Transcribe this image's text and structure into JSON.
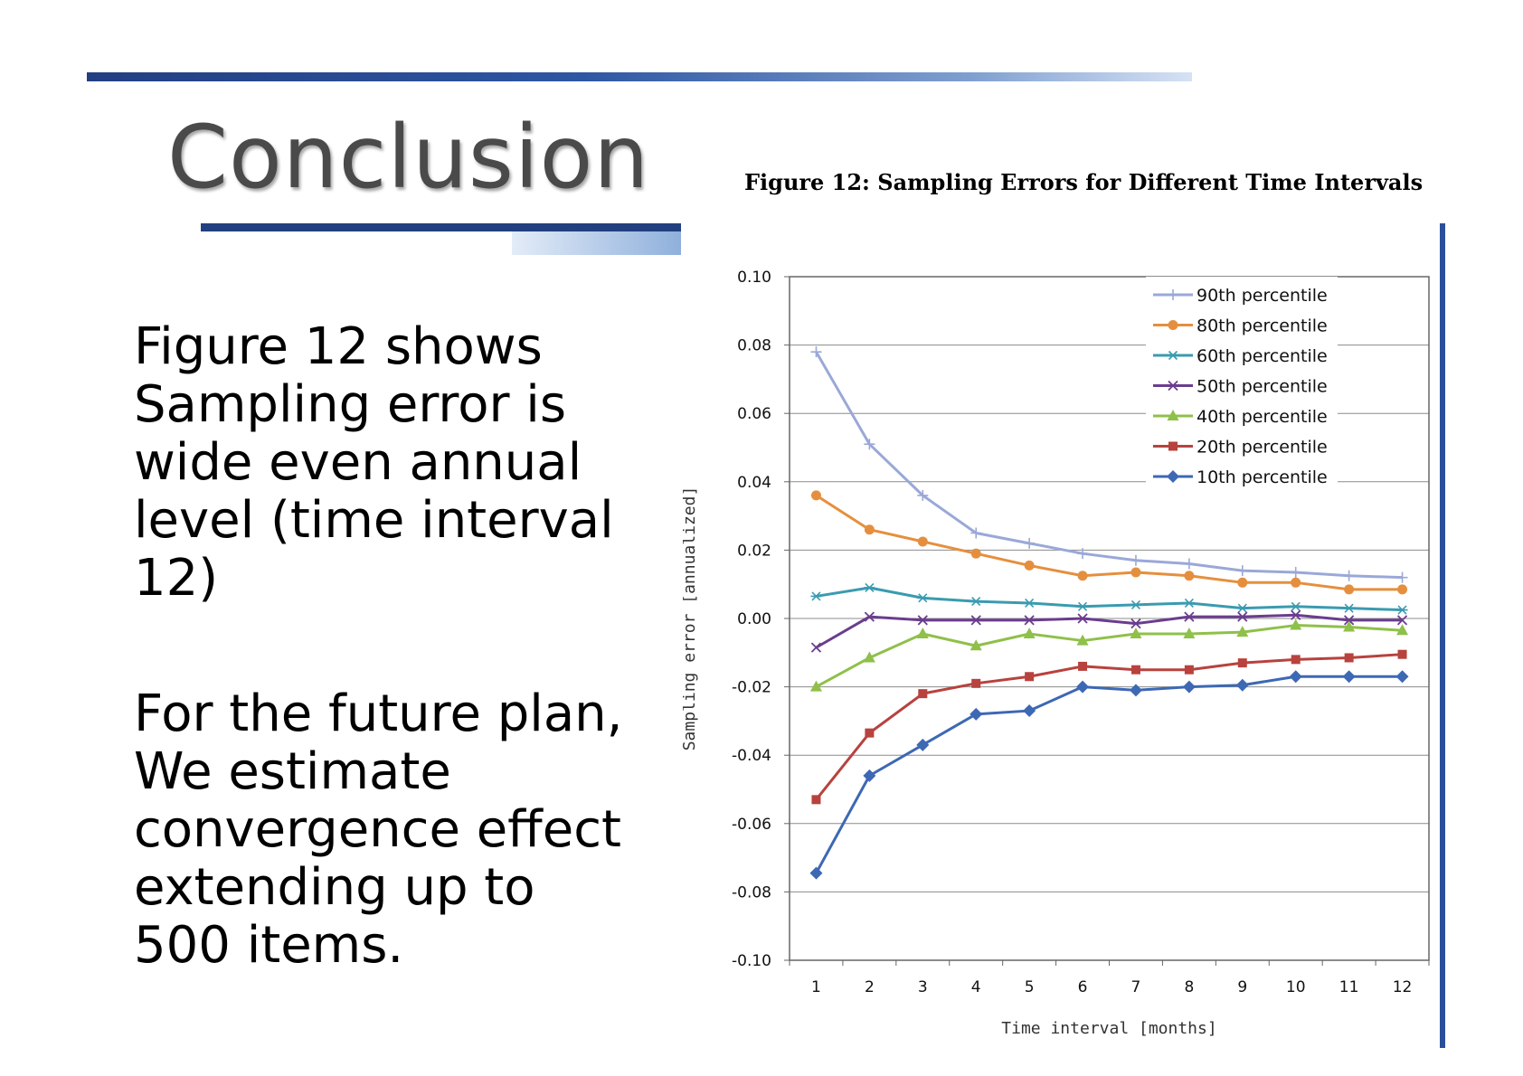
{
  "slide": {
    "title": "Conclusion",
    "paragraph1": [
      "Figure 12 shows",
      "Sampling error is",
      "wide even annual",
      "level (time interval",
      "12)"
    ],
    "paragraph2": [
      "For the future plan,",
      "We estimate",
      "convergence effect",
      "extending up to",
      "500 items."
    ]
  },
  "chart_data": {
    "type": "line",
    "title": "Figure 12: Sampling Errors for Different Time Intervals",
    "xlabel": "Time interval [months]",
    "ylabel": "Sampling error [annualized]",
    "x": [
      1,
      2,
      3,
      4,
      5,
      6,
      7,
      8,
      9,
      10,
      11,
      12
    ],
    "xticks": [
      "1",
      "2",
      "3",
      "4",
      "5",
      "6",
      "7",
      "8",
      "9",
      "10",
      "11",
      "12"
    ],
    "ylim": [
      -0.1,
      0.1
    ],
    "yticks": [
      "0.10",
      "0.08",
      "0.06",
      "0.04",
      "0.02",
      "0.00",
      "-0.02",
      "-0.04",
      "-0.06",
      "-0.08",
      "-0.10"
    ],
    "ytick_values": [
      0.1,
      0.08,
      0.06,
      0.04,
      0.02,
      0.0,
      -0.02,
      -0.04,
      -0.06,
      -0.08,
      -0.1
    ],
    "grid": true,
    "legend_position": "top-right",
    "series": [
      {
        "name": "90th percentile",
        "color": "#9aa8d8",
        "marker": "plus",
        "values": [
          0.078,
          0.051,
          0.036,
          0.025,
          0.022,
          0.019,
          0.017,
          0.016,
          0.014,
          0.0135,
          0.0125,
          0.012
        ]
      },
      {
        "name": "80th percentile",
        "color": "#e58f3e",
        "marker": "circle",
        "values": [
          0.036,
          0.026,
          0.0225,
          0.019,
          0.0155,
          0.0125,
          0.0135,
          0.0125,
          0.0105,
          0.0105,
          0.0085,
          0.0085
        ]
      },
      {
        "name": "60th percentile",
        "color": "#3a9bb0",
        "marker": "star",
        "values": [
          0.0065,
          0.009,
          0.006,
          0.005,
          0.0045,
          0.0035,
          0.004,
          0.0045,
          0.003,
          0.0035,
          0.003,
          0.0025
        ]
      },
      {
        "name": "50th percentile",
        "color": "#6a3d8e",
        "marker": "x",
        "values": [
          -0.0085,
          0.0005,
          -0.0005,
          -0.0005,
          -0.0005,
          0.0,
          -0.0015,
          0.0005,
          0.0005,
          0.001,
          -0.0005,
          -0.0005
        ]
      },
      {
        "name": "40th percentile",
        "color": "#8fc04a",
        "marker": "triangle",
        "values": [
          -0.02,
          -0.0115,
          -0.0045,
          -0.008,
          -0.0045,
          -0.0065,
          -0.0045,
          -0.0045,
          -0.004,
          -0.002,
          -0.0025,
          -0.0035
        ]
      },
      {
        "name": "20th percentile",
        "color": "#b8423e",
        "marker": "square",
        "values": [
          -0.053,
          -0.0335,
          -0.022,
          -0.019,
          -0.017,
          -0.014,
          -0.015,
          -0.015,
          -0.013,
          -0.012,
          -0.0115,
          -0.0105
        ]
      },
      {
        "name": "10th percentile",
        "color": "#3d68b4",
        "marker": "diamond",
        "values": [
          -0.0745,
          -0.046,
          -0.037,
          -0.028,
          -0.027,
          -0.02,
          -0.021,
          -0.02,
          -0.0195,
          -0.017,
          -0.017,
          -0.017
        ]
      }
    ]
  }
}
